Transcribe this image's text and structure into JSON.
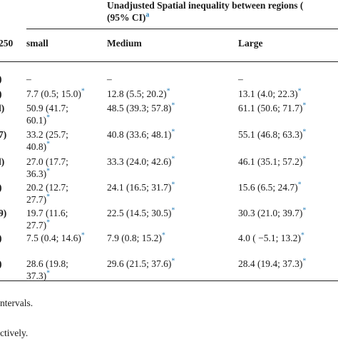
{
  "header": {
    "group_title_line1": "Unadjusted Spatial inequality between regions (",
    "group_title_line2": "(95% CI)",
    "group_title_sup": "a",
    "left_col_partial": "250",
    "col_small": "small",
    "col_medium": "Medium",
    "col_large": "Large"
  },
  "marker": "*",
  "rows": [
    {
      "label": ")",
      "small": [
        "–"
      ],
      "small_star": [
        false
      ],
      "medium": "–",
      "medium_star": false,
      "large": "–",
      "large_star": false
    },
    {
      "label": ")",
      "small": [
        "7.7 (0.5; 15.0)"
      ],
      "small_star": [
        true
      ],
      "medium": "12.8 (5.5; 20.2)",
      "medium_star": true,
      "large": "13.1 (4.0; 22.3)",
      "large_star": true
    },
    {
      "label": "l)",
      "small": [
        "50.9 (41.7;",
        "60.1)"
      ],
      "small_star": [
        false,
        true
      ],
      "medium": "48.5 (39.3; 57.8)",
      "medium_star": true,
      "large": "61.1 (50.6; 71.7)",
      "large_star": true
    },
    {
      "label": "7)",
      "small": [
        "33.2 (25.7;",
        "40.8)"
      ],
      "small_star": [
        false,
        true
      ],
      "medium": "40.8 (33.6; 48.1)",
      "medium_star": true,
      "large": "55.1 (46.8; 63.3)",
      "large_star": true
    },
    {
      "label": "l)",
      "small": [
        "27.0 (17.7;",
        "36.3)"
      ],
      "small_star": [
        false,
        true
      ],
      "medium": "33.3 (24.0; 42.6)",
      "medium_star": true,
      "large": "46.1 (35.1; 57.2)",
      "large_star": true
    },
    {
      "label": ")",
      "small": [
        "20.2 (12.7;",
        "27.7)"
      ],
      "small_star": [
        false,
        true
      ],
      "medium": "24.1 (16.5; 31.7)",
      "medium_star": true,
      "large": "15.6 (6.5; 24.7)",
      "large_star": true
    },
    {
      "label": "9)",
      "small": [
        "19.7 (11.6;",
        "27.7)"
      ],
      "small_star": [
        false,
        true
      ],
      "medium": "22.5 (14.5; 30.5)",
      "medium_star": true,
      "large": "30.3 (21.0; 39.7)",
      "large_star": true
    },
    {
      "label": ")",
      "small": [
        "7.5 (0.4; 14.6)"
      ],
      "small_star": [
        true
      ],
      "medium": "7.9 (0.8; 15.2)",
      "medium_star": true,
      "large": "4.0 ( −5.1; 13.2)",
      "large_star": true
    },
    {
      "label": ")",
      "small": [
        "28.6 (19.8;",
        "37.3)"
      ],
      "small_star": [
        false,
        true
      ],
      "medium": "29.6 (21.5; 37.6)",
      "medium_star": true,
      "large": "28.4 (19.4; 37.3)",
      "large_star": true
    }
  ],
  "footnotes": {
    "line1": "ntervals.",
    "line2": "ctively."
  },
  "colors": {
    "marker": "#2a7fb8",
    "rule": "#222222",
    "text": "#1a1a1a"
  }
}
